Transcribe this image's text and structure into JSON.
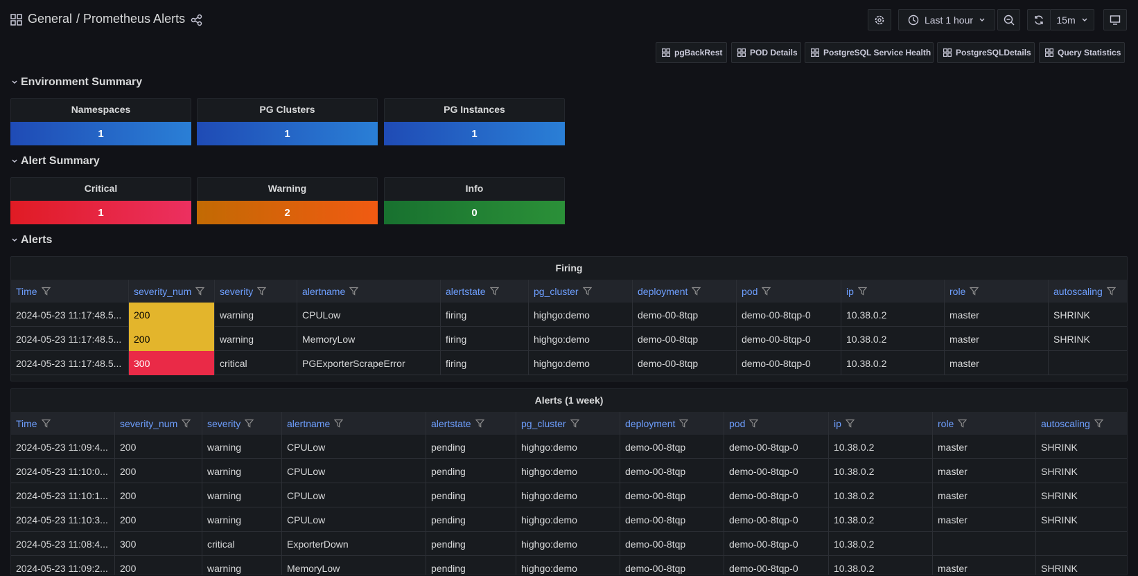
{
  "header": {
    "folder": "General",
    "title": "/ Prometheus Alerts",
    "time_range": "Last 1 hour",
    "refresh": "15m"
  },
  "links": [
    "pgBackRest",
    "POD Details",
    "PostgreSQL Service Health",
    "PostgreSQLDetails",
    "Query Statistics"
  ],
  "sections": [
    {
      "title": "Environment Summary",
      "stats": [
        {
          "title": "Namespaces",
          "value": 1,
          "color": [
            "#1f4bb5",
            "#2a7fd6"
          ]
        },
        {
          "title": "PG Clusters",
          "value": 1,
          "color": [
            "#1f4bb5",
            "#2a7fd6"
          ]
        },
        {
          "title": "PG Instances",
          "value": 1,
          "color": [
            "#1f4bb5",
            "#2a7fd6"
          ]
        }
      ]
    },
    {
      "title": "Alert Summary",
      "stats": [
        {
          "title": "Critical",
          "value": 1,
          "color": [
            "#e01b24",
            "#ec3060"
          ]
        },
        {
          "title": "Warning",
          "value": 2,
          "color": [
            "#c26a03",
            "#f15a12"
          ]
        },
        {
          "title": "Info",
          "value": 0,
          "color": [
            "#18712f",
            "#2b9038"
          ]
        }
      ]
    },
    {
      "title": "Alerts"
    }
  ],
  "tables": [
    {
      "title": "Firing",
      "columns": [
        "Time",
        "severity_num",
        "severity",
        "alertname",
        "alertstate",
        "pg_cluster",
        "deployment",
        "pod",
        "ip",
        "role",
        "autoscaling"
      ],
      "cell_colors": [
        "#e3b52c",
        "#e3b52c",
        "#ea2a47"
      ],
      "rows": [
        [
          "2024-05-23 11:17:48.5...",
          "200",
          "warning",
          "CPULow",
          "firing",
          "highgo:demo",
          "demo-00-8tqp",
          "demo-00-8tqp-0",
          "10.38.0.2",
          "master",
          "SHRINK"
        ],
        [
          "2024-05-23 11:17:48.5...",
          "200",
          "warning",
          "MemoryLow",
          "firing",
          "highgo:demo",
          "demo-00-8tqp",
          "demo-00-8tqp-0",
          "10.38.0.2",
          "master",
          "SHRINK"
        ],
        [
          "2024-05-23 11:17:48.5...",
          "300",
          "critical",
          "PGExporterScrapeError",
          "firing",
          "highgo:demo",
          "demo-00-8tqp",
          "demo-00-8tqp-0",
          "10.38.0.2",
          "master",
          null
        ]
      ]
    },
    {
      "title": "Alerts (1 week)",
      "columns": [
        "Time",
        "severity_num",
        "severity",
        "alertname",
        "alertstate",
        "pg_cluster",
        "deployment",
        "pod",
        "ip",
        "role",
        "autoscaling"
      ],
      "rows": [
        [
          "2024-05-23 11:09:4...",
          "200",
          "warning",
          "CPULow",
          "pending",
          "highgo:demo",
          "demo-00-8tqp",
          "demo-00-8tqp-0",
          "10.38.0.2",
          "master",
          "SHRINK"
        ],
        [
          "2024-05-23 11:10:0...",
          "200",
          "warning",
          "CPULow",
          "pending",
          "highgo:demo",
          "demo-00-8tqp",
          "demo-00-8tqp-0",
          "10.38.0.2",
          "master",
          "SHRINK"
        ],
        [
          "2024-05-23 11:10:1...",
          "200",
          "warning",
          "CPULow",
          "pending",
          "highgo:demo",
          "demo-00-8tqp",
          "demo-00-8tqp-0",
          "10.38.0.2",
          "master",
          "SHRINK"
        ],
        [
          "2024-05-23 11:10:3...",
          "200",
          "warning",
          "CPULow",
          "pending",
          "highgo:demo",
          "demo-00-8tqp",
          "demo-00-8tqp-0",
          "10.38.0.2",
          "master",
          "SHRINK"
        ],
        [
          "2024-05-23 11:08:4...",
          "300",
          "critical",
          "ExporterDown",
          "pending",
          "highgo:demo",
          "demo-00-8tqp",
          "demo-00-8tqp-0",
          "10.38.0.2",
          null,
          null
        ],
        [
          "2024-05-23 11:09:2...",
          "200",
          "warning",
          "MemoryLow",
          "pending",
          "highgo:demo",
          "demo-00-8tqp",
          "demo-00-8tqp-0",
          "10.38.0.2",
          "master",
          "SHRINK"
        ]
      ]
    }
  ]
}
